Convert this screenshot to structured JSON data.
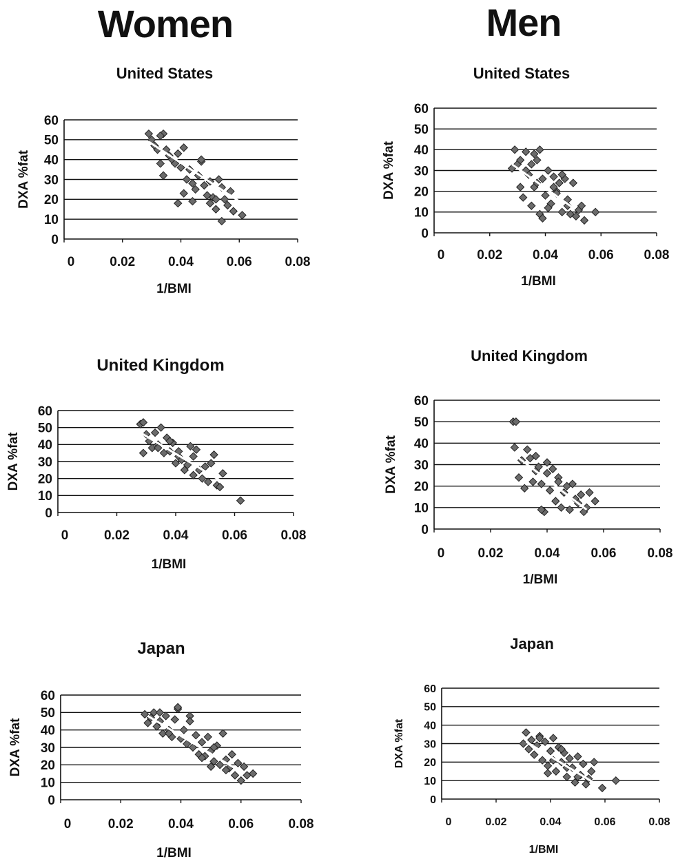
{
  "columns": {
    "left": "Women",
    "right": "Men"
  },
  "chart_data": [
    {
      "group": "Women",
      "title": "United States",
      "type": "scatter",
      "xlabel": "1/BMI",
      "ylabel": "DXA %fat",
      "xlim": [
        0,
        0.08
      ],
      "ylim": [
        0,
        60
      ],
      "xticks": [
        "0",
        "0.02",
        "0.04",
        "0.06",
        "0.08"
      ],
      "yticks": [
        "0",
        "10",
        "20",
        "30",
        "40",
        "50",
        "60"
      ],
      "trendline": {
        "x": [
          0.029,
          0.06
        ],
        "y": [
          49,
          19
        ]
      },
      "points": {
        "x": [
          0.029,
          0.03,
          0.031,
          0.032,
          0.033,
          0.034,
          0.035,
          0.036,
          0.037,
          0.038,
          0.039,
          0.04,
          0.041,
          0.042,
          0.043,
          0.044,
          0.045,
          0.046,
          0.047,
          0.048,
          0.049,
          0.05,
          0.051,
          0.052,
          0.053,
          0.054,
          0.055,
          0.056,
          0.057,
          0.058,
          0.061,
          0.054,
          0.034,
          0.047,
          0.052,
          0.05,
          0.039,
          0.044,
          0.033,
          0.041
        ],
        "y": [
          53,
          50,
          47,
          45,
          38,
          53,
          45,
          42,
          40,
          38,
          43,
          36,
          46,
          30,
          35,
          28,
          25,
          32,
          39,
          27,
          22,
          18,
          21,
          15,
          30,
          9,
          20,
          17,
          24,
          14,
          12,
          26,
          32,
          40,
          20,
          29,
          18,
          19,
          52,
          23
        ]
      }
    },
    {
      "group": "Men",
      "title": "United States",
      "type": "scatter",
      "xlabel": "1/BMI",
      "ylabel": "DXA %fat",
      "xlim": [
        0,
        0.08
      ],
      "ylim": [
        0,
        60
      ],
      "xticks": [
        "0",
        "0.02",
        "0.04",
        "0.06",
        "0.08"
      ],
      "yticks": [
        "0",
        "10",
        "20",
        "30",
        "40",
        "50",
        "60"
      ],
      "trendline": {
        "x": [
          0.028,
          0.05
        ],
        "y": [
          33,
          12
        ]
      },
      "points": {
        "x": [
          0.028,
          0.029,
          0.03,
          0.031,
          0.032,
          0.033,
          0.034,
          0.035,
          0.036,
          0.037,
          0.038,
          0.039,
          0.04,
          0.041,
          0.042,
          0.043,
          0.044,
          0.045,
          0.046,
          0.047,
          0.048,
          0.049,
          0.05,
          0.051,
          0.052,
          0.053,
          0.054,
          0.058,
          0.038,
          0.035,
          0.037,
          0.043,
          0.048,
          0.033,
          0.041,
          0.046,
          0.039,
          0.044,
          0.036,
          0.031
        ],
        "y": [
          31,
          40,
          33,
          35,
          17,
          39,
          28,
          33,
          22,
          24,
          40,
          26,
          18,
          30,
          14,
          27,
          20,
          24,
          10,
          26,
          13,
          9,
          24,
          8,
          11,
          13,
          6,
          10,
          9,
          13,
          35,
          22,
          16,
          30,
          12,
          28,
          7,
          19,
          38,
          22
        ]
      }
    },
    {
      "group": "Women",
      "title": "United Kingdom",
      "type": "scatter",
      "xlabel": "1/BMI",
      "ylabel": "DXA %fat",
      "xlim": [
        0,
        0.08
      ],
      "ylim": [
        0,
        60
      ],
      "xticks": [
        "0",
        "0.02",
        "0.04",
        "0.06",
        "0.08"
      ],
      "yticks": [
        "0",
        "10",
        "20",
        "30",
        "40",
        "50",
        "60"
      ],
      "trendline": {
        "x": [
          0.028,
          0.056
        ],
        "y": [
          47,
          18
        ]
      },
      "points": {
        "x": [
          0.028,
          0.029,
          0.03,
          0.031,
          0.032,
          0.033,
          0.034,
          0.035,
          0.036,
          0.037,
          0.038,
          0.039,
          0.04,
          0.041,
          0.042,
          0.043,
          0.044,
          0.045,
          0.046,
          0.047,
          0.048,
          0.049,
          0.05,
          0.051,
          0.052,
          0.053,
          0.054,
          0.055,
          0.056,
          0.062,
          0.029,
          0.034,
          0.038,
          0.046,
          0.041
        ],
        "y": [
          52,
          35,
          46,
          42,
          38,
          47,
          40,
          50,
          35,
          44,
          36,
          41,
          29,
          33,
          31,
          25,
          28,
          39,
          22,
          37,
          25,
          20,
          27,
          18,
          29,
          34,
          16,
          15,
          23,
          7,
          53,
          38,
          42,
          33,
          36
        ]
      }
    },
    {
      "group": "Men",
      "title": "United Kingdom",
      "type": "scatter",
      "xlabel": "1/BMI",
      "ylabel": "DXA %fat",
      "xlim": [
        0,
        0.08
      ],
      "ylim": [
        0,
        60
      ],
      "xticks": [
        "0",
        "0.02",
        "0.04",
        "0.06",
        "0.08"
      ],
      "yticks": [
        "0",
        "10",
        "20",
        "30",
        "40",
        "50",
        "60"
      ],
      "trendline": {
        "x": [
          0.028,
          0.054
        ],
        "y": [
          35,
          9
        ]
      },
      "points": {
        "x": [
          0.028,
          0.0285,
          0.029,
          0.03,
          0.031,
          0.032,
          0.033,
          0.034,
          0.035,
          0.036,
          0.037,
          0.038,
          0.039,
          0.04,
          0.041,
          0.042,
          0.043,
          0.044,
          0.045,
          0.046,
          0.047,
          0.048,
          0.049,
          0.05,
          0.051,
          0.052,
          0.053,
          0.054,
          0.055,
          0.057,
          0.036,
          0.04,
          0.044,
          0.038
        ],
        "y": [
          50,
          38,
          50,
          24,
          32,
          19,
          37,
          33,
          22,
          27,
          29,
          21,
          8,
          31,
          18,
          28,
          13,
          24,
          10,
          17,
          20,
          9,
          21,
          14,
          12,
          16,
          8,
          10,
          17,
          13,
          34,
          26,
          22,
          9
        ]
      }
    },
    {
      "group": "Women",
      "title": "Japan",
      "type": "scatter",
      "xlabel": "1/BMI",
      "ylabel": "DXA %fat",
      "xlim": [
        0,
        0.08
      ],
      "ylim": [
        0,
        60
      ],
      "xticks": [
        "0",
        "0.02",
        "0.04",
        "0.06",
        "0.08"
      ],
      "yticks": [
        "0",
        "10",
        "20",
        "30",
        "40",
        "50",
        "60"
      ],
      "trendline": {
        "x": [
          0.029,
          0.06
        ],
        "y": [
          48,
          16
        ]
      },
      "points": {
        "x": [
          0.028,
          0.029,
          0.03,
          0.031,
          0.032,
          0.033,
          0.034,
          0.035,
          0.036,
          0.037,
          0.038,
          0.039,
          0.04,
          0.041,
          0.042,
          0.043,
          0.044,
          0.045,
          0.046,
          0.047,
          0.048,
          0.049,
          0.05,
          0.051,
          0.052,
          0.053,
          0.054,
          0.055,
          0.056,
          0.057,
          0.058,
          0.059,
          0.06,
          0.061,
          0.062,
          0.064,
          0.039,
          0.043,
          0.036,
          0.047,
          0.051,
          0.055,
          0.033,
          0.05
        ],
        "y": [
          49,
          44,
          47,
          50,
          42,
          45,
          38,
          48,
          40,
          36,
          46,
          52,
          35,
          40,
          32,
          48,
          30,
          37,
          26,
          33,
          25,
          36,
          28,
          22,
          31,
          20,
          38,
          23,
          18,
          26,
          14,
          21,
          11,
          19,
          14,
          15,
          53,
          45,
          38,
          24,
          30,
          17,
          50,
          19
        ]
      }
    },
    {
      "group": "Men",
      "title": "Japan",
      "type": "scatter",
      "xlabel": "1/BMI",
      "ylabel": "DXA %fat",
      "xlim": [
        0,
        0.08
      ],
      "ylim": [
        0,
        60
      ],
      "xticks": [
        "0",
        "0.02",
        "0.04",
        "0.06",
        "0.08"
      ],
      "yticks": [
        "0",
        "10",
        "20",
        "30",
        "40",
        "50",
        "60"
      ],
      "trendline": {
        "x": [
          0.031,
          0.058
        ],
        "y": [
          31,
          7
        ]
      },
      "points": {
        "x": [
          0.03,
          0.031,
          0.032,
          0.033,
          0.034,
          0.035,
          0.036,
          0.037,
          0.038,
          0.039,
          0.04,
          0.041,
          0.042,
          0.043,
          0.044,
          0.045,
          0.046,
          0.047,
          0.048,
          0.049,
          0.05,
          0.051,
          0.052,
          0.053,
          0.054,
          0.055,
          0.056,
          0.059,
          0.064,
          0.036,
          0.041,
          0.046,
          0.05,
          0.044,
          0.039
        ],
        "y": [
          30,
          36,
          27,
          32,
          24,
          29,
          34,
          21,
          31,
          18,
          26,
          33,
          15,
          28,
          20,
          25,
          12,
          22,
          17,
          9,
          23,
          13,
          19,
          8,
          11,
          15,
          20,
          6,
          10,
          33,
          21,
          17,
          12,
          27,
          14
        ]
      }
    }
  ]
}
